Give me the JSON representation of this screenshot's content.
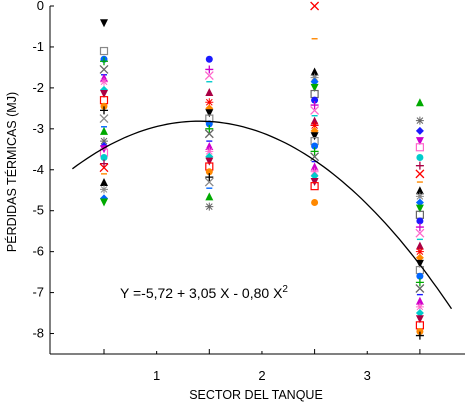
{
  "chart_data": {
    "type": "scatter",
    "title": "",
    "xlabel": "SECTOR DEL TANQUE",
    "ylabel": "PÉRDIDAS TÉRMICAS (MJ)",
    "xlim": [
      -0.5,
      4.0
    ],
    "ylim": [
      -8.5,
      0
    ],
    "x_ticks": [
      1,
      2,
      3
    ],
    "x_tick_labels": [
      "1",
      "2",
      "3"
    ],
    "y_ticks": [
      0,
      -1,
      -2,
      -3,
      -4,
      -5,
      -6,
      -7,
      -8
    ],
    "y_tick_labels": [
      "0",
      "-1",
      "-2",
      "-3",
      "-4",
      "-5",
      "-6",
      "-7",
      "-8"
    ],
    "grid": false,
    "legend": "none",
    "annotation": {
      "text_main": "Y =-5,72 + 3,05 X - 0,80 X",
      "superscript": "2"
    },
    "fit": {
      "equation": "Y = -5.72 + 3.05X - 0.80X^2",
      "x_range": [
        -0.3,
        3.3
      ],
      "coefficients": [
        -5.72,
        3.05,
        -0.8
      ]
    },
    "point_groups": [
      {
        "x": 0,
        "values": [
          -0.42,
          -1.1,
          -1.3,
          -1.35,
          -1.55,
          -1.68,
          -1.75,
          -1.85,
          -2.05,
          -2.15,
          -2.3,
          -2.45,
          -2.55,
          -2.75,
          -2.95,
          -3.05,
          -3.3,
          -3.42,
          -3.5,
          -3.58,
          -3.7,
          -3.85,
          -3.95,
          -4.1,
          -4.3,
          -4.48,
          -4.7,
          -4.8
        ]
      },
      {
        "x": 1,
        "values": [
          -1.3,
          -1.55,
          -1.7,
          -1.85,
          -2.1,
          -2.35,
          -2.5,
          -2.62,
          -2.75,
          -2.88,
          -3.0,
          -3.12,
          -3.3,
          -3.42,
          -3.55,
          -3.68,
          -3.8,
          -3.92,
          -4.05,
          -4.18,
          -4.3,
          -4.45,
          -4.65,
          -4.9
        ]
      },
      {
        "x": 2,
        "values": [
          0.0,
          -0.8,
          -1.6,
          -1.75,
          -1.85,
          -2.0,
          -2.15,
          -2.3,
          -2.42,
          -2.55,
          -2.68,
          -2.8,
          -2.92,
          -3.05,
          -3.18,
          -3.3,
          -3.42,
          -3.55,
          -3.68,
          -3.8,
          -3.92,
          -4.05,
          -4.15,
          -4.3,
          -4.4,
          -4.8
        ]
      },
      {
        "x": 3,
        "values": [
          -2.35,
          -2.8,
          -3.05,
          -3.3,
          -3.45,
          -3.7,
          -3.9,
          -4.1,
          -4.3,
          -4.5,
          -4.65,
          -4.8,
          -4.95,
          -5.1,
          -5.25,
          -5.4,
          -5.55,
          -5.7,
          -5.85,
          -6.0,
          -6.15,
          -6.3,
          -6.45,
          -6.6,
          -6.75,
          -6.9,
          -7.05,
          -7.2,
          -7.35,
          -7.5,
          -7.65,
          -7.8,
          -7.95,
          -8.05
        ]
      }
    ],
    "marker_colors": [
      "#000000",
      "#1a1aff",
      "#ff0000",
      "#00aa00",
      "#00cccc",
      "#888888",
      "#cc00cc",
      "#ff8800",
      "#666666",
      "#aa0044",
      "#0066ff",
      "#ff66cc"
    ]
  }
}
